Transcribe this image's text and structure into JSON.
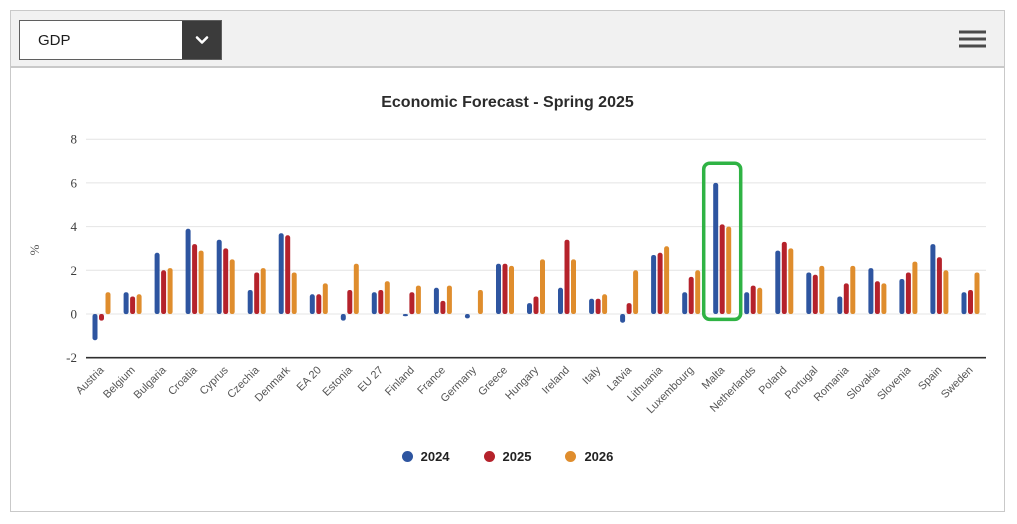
{
  "toolbar": {
    "metric_dropdown": {
      "value": "GDP"
    }
  },
  "chart_data": {
    "type": "bar",
    "title": "Economic Forecast - Spring 2025",
    "xlabel": "",
    "ylabel": "%",
    "ylim": [
      -2,
      8
    ],
    "y_ticks": [
      8,
      6,
      4,
      2,
      0,
      -2
    ],
    "grid": true,
    "legend_position": "bottom",
    "categories": [
      "Austria",
      "Belgium",
      "Bulgaria",
      "Croatia",
      "Cyprus",
      "Czechia",
      "Denmark",
      "EA 20",
      "Estonia",
      "EU 27",
      "Finland",
      "France",
      "Germany",
      "Greece",
      "Hungary",
      "Ireland",
      "Italy",
      "Latvia",
      "Lithuania",
      "Luxembourg",
      "Malta",
      "Netherlands",
      "Poland",
      "Portugal",
      "Romania",
      "Slovakia",
      "Slovenia",
      "Spain",
      "Sweden"
    ],
    "series": [
      {
        "name": "2024",
        "color": "#2e55a0",
        "values": [
          -1.2,
          1.0,
          2.8,
          3.9,
          3.4,
          1.1,
          3.7,
          0.9,
          -0.3,
          1.0,
          -0.1,
          1.2,
          -0.2,
          2.3,
          0.5,
          1.2,
          0.7,
          -0.4,
          2.7,
          1.0,
          6.0,
          1.0,
          2.9,
          1.9,
          0.8,
          2.1,
          1.6,
          3.2,
          1.0
        ]
      },
      {
        "name": "2025",
        "color": "#b5222b",
        "values": [
          -0.3,
          0.8,
          2.0,
          3.2,
          3.0,
          1.9,
          3.6,
          0.9,
          1.1,
          1.1,
          1.0,
          0.6,
          0.0,
          2.3,
          0.8,
          3.4,
          0.7,
          0.5,
          2.8,
          1.7,
          4.1,
          1.3,
          3.3,
          1.8,
          1.4,
          1.5,
          1.9,
          2.6,
          1.1
        ]
      },
      {
        "name": "2026",
        "color": "#df8d2d",
        "values": [
          1.0,
          0.9,
          2.1,
          2.9,
          2.5,
          2.1,
          1.9,
          1.4,
          2.3,
          1.5,
          1.3,
          1.3,
          1.1,
          2.2,
          2.5,
          2.5,
          0.9,
          2.0,
          3.1,
          2.0,
          4.0,
          1.2,
          3.0,
          2.2,
          2.2,
          1.4,
          2.4,
          2.0,
          1.9
        ]
      }
    ],
    "highlight": {
      "category": "Malta",
      "y_top": 6.9,
      "y_bottom": -0.25,
      "color": "#2fb344"
    }
  }
}
